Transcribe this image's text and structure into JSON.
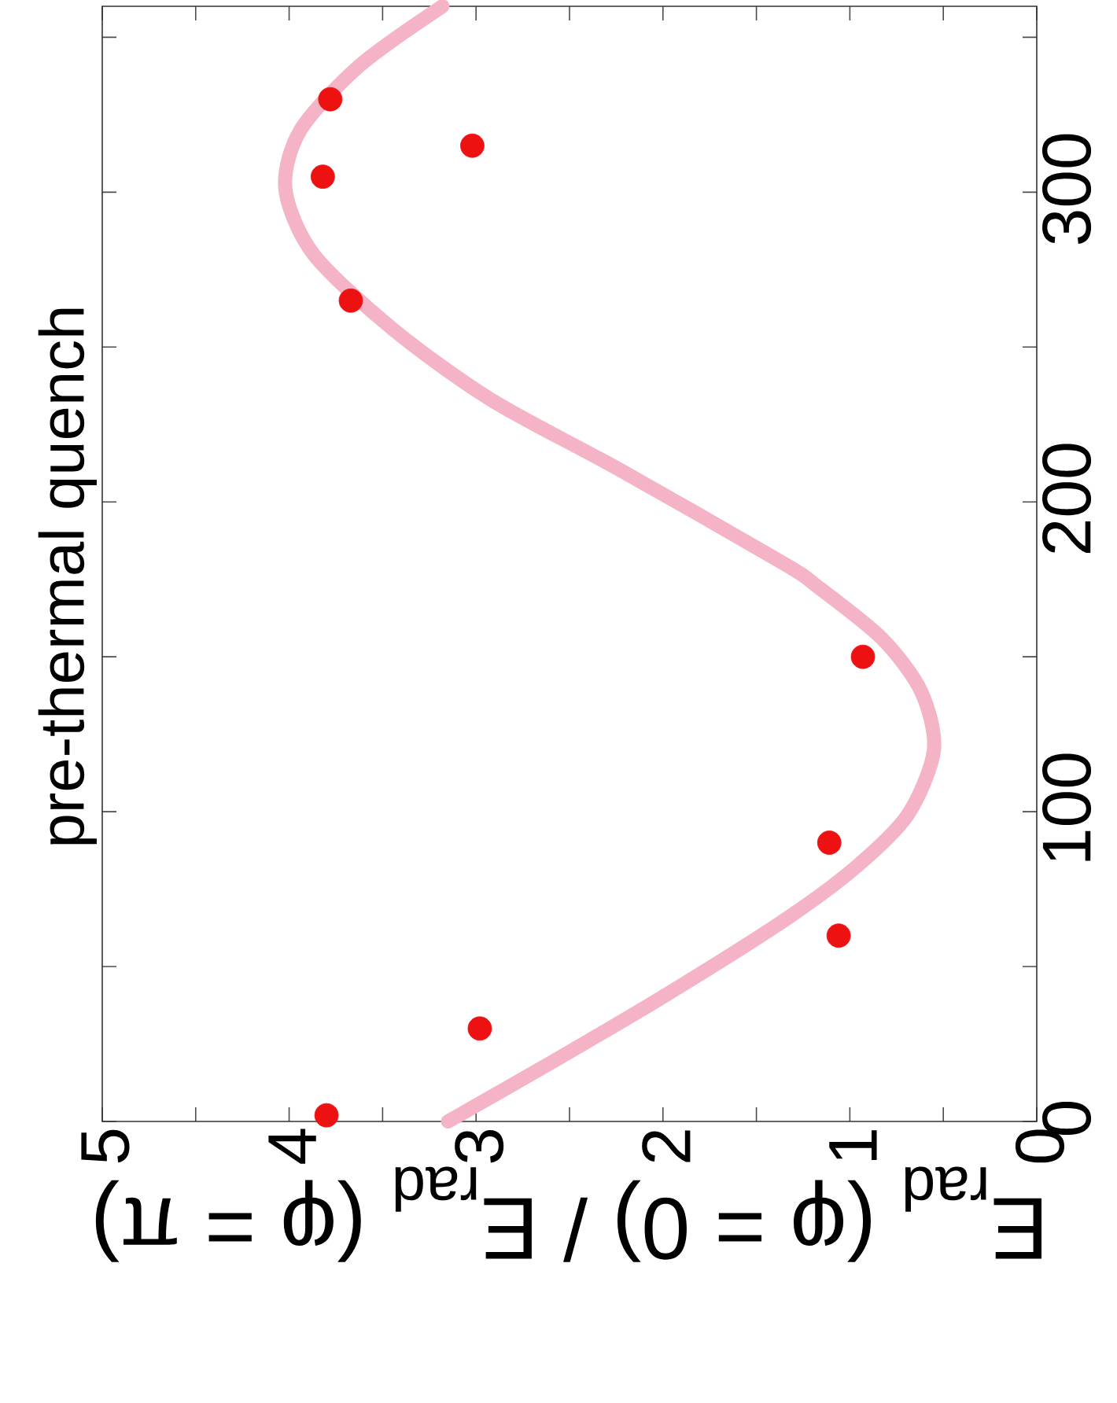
{
  "chart_data": {
    "type": "scatter",
    "xlabel": "E$_{rad}$ (φ = 0) / E$_{rad}$ (φ = π)",
    "annotations": [
      "pre-thermal quench"
    ],
    "xlim": [
      5,
      0
    ],
    "ylim": [
      0,
      360
    ],
    "xticks": [
      0,
      {
        "value": 0.5,
        "label": null
      },
      1,
      {
        "value": 1.5,
        "label": null
      },
      2,
      {
        "value": 2.5,
        "label": null
      },
      3,
      {
        "value": 3.5,
        "label": null
      },
      4,
      {
        "value": 4.5,
        "label": null
      },
      5
    ],
    "yticks": [
      0,
      {
        "value": 50,
        "label": null
      },
      100,
      {
        "value": 150,
        "label": null
      },
      200,
      {
        "value": 250,
        "label": null
      },
      300,
      {
        "value": 350,
        "label": null
      }
    ],
    "series": [
      {
        "type": "line",
        "color": "#f5b3c6",
        "marker": "none",
        "x": [
          3.15,
          2.57,
          1.98,
          1.35,
          0.97,
          0.69,
          0.55,
          0.62,
          0.83,
          1.18,
          1.35,
          2.22,
          2.92,
          3.45,
          3.87,
          4.02,
          3.94,
          3.62,
          3.18
        ],
        "values": [
          0,
          20,
          41,
          65,
          82,
          99,
          120,
          139,
          156,
          173,
          180,
          210,
          233,
          256,
          280,
          301,
          320,
          341,
          360
        ]
      },
      {
        "color": "#ee1111",
        "marker": "circle",
        "x": [
          3.8,
          2.98,
          1.06,
          1.11,
          0.93,
          3.67,
          3.82,
          3.02,
          3.78
        ],
        "values": [
          2,
          30,
          60,
          90,
          150,
          265,
          305,
          315,
          330
        ]
      }
    ]
  }
}
